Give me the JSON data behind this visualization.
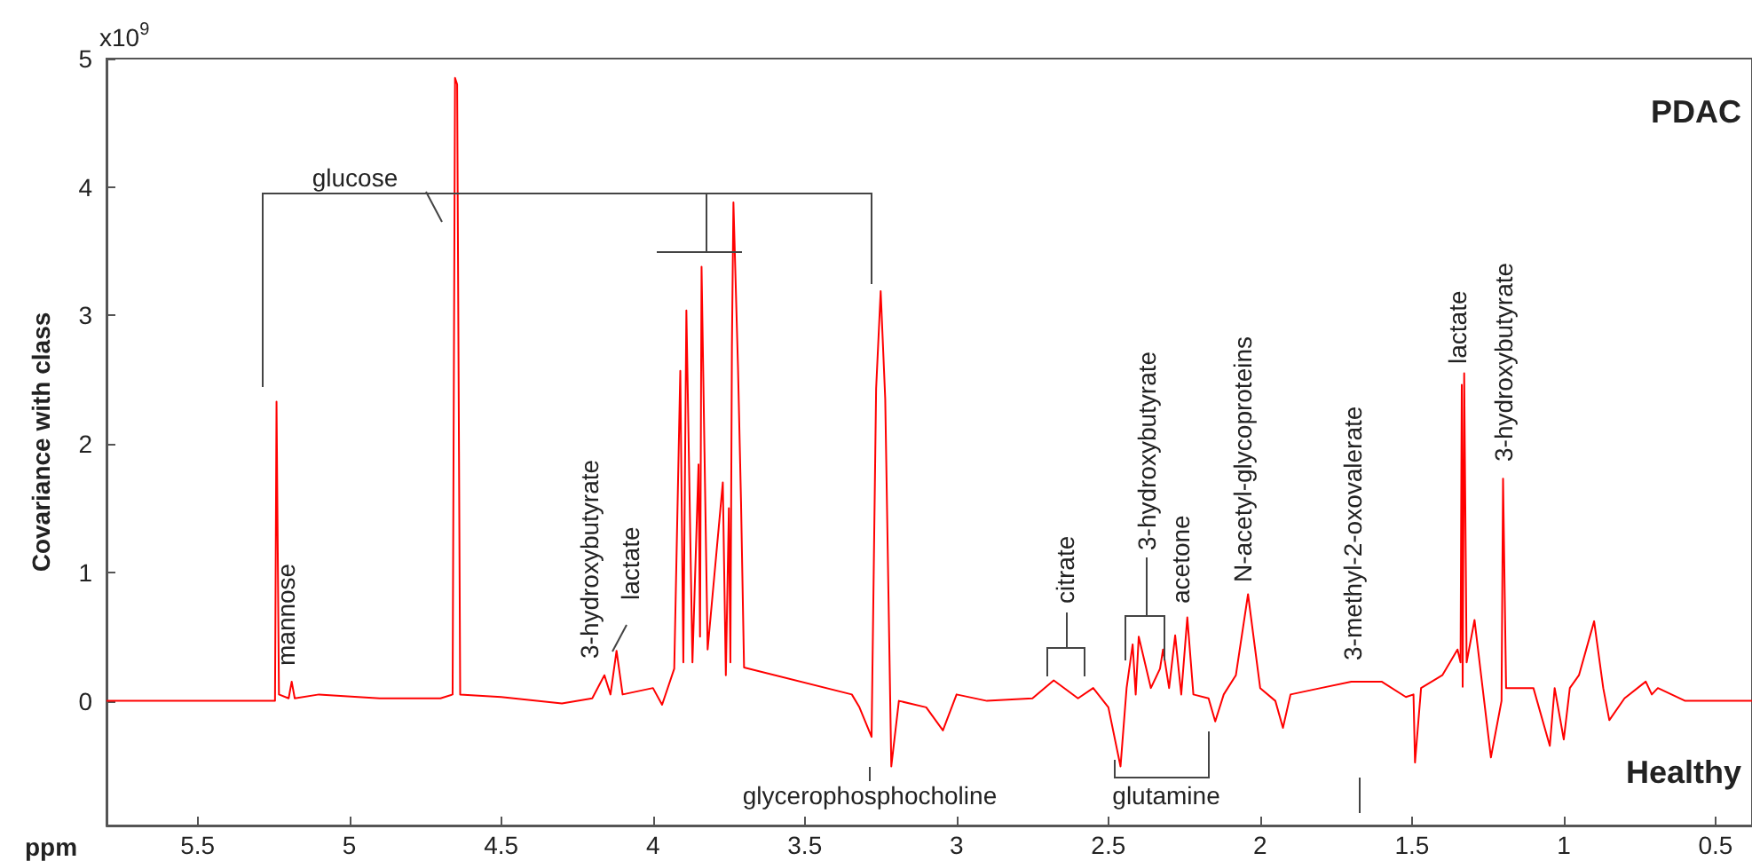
{
  "chart_data": {
    "type": "line",
    "xlabel": "ppm",
    "ylabel": "Covariance with class",
    "x": [
      5.8,
      5.5,
      5.3,
      5.245,
      5.24,
      5.232,
      5.2,
      5.19,
      5.18,
      5.1,
      4.9,
      4.7,
      4.66,
      4.652,
      4.645,
      4.635,
      4.5,
      4.3,
      4.2,
      4.16,
      4.14,
      4.12,
      4.1,
      4.0,
      3.97,
      3.93,
      3.91,
      3.9,
      3.89,
      3.87,
      3.85,
      3.845,
      3.84,
      3.82,
      3.77,
      3.76,
      3.75,
      3.745,
      3.74,
      3.735,
      3.72,
      3.71,
      3.7,
      3.345,
      3.32,
      3.28,
      3.265,
      3.25,
      3.235,
      3.215,
      3.19,
      3.1,
      3.045,
      3.0,
      2.9,
      2.75,
      2.68,
      2.6,
      2.55,
      2.5,
      2.46,
      2.44,
      2.42,
      2.41,
      2.4,
      2.36,
      2.33,
      2.32,
      2.3,
      2.28,
      2.26,
      2.24,
      2.22,
      2.17,
      2.148,
      2.12,
      2.08,
      2.04,
      2.0,
      1.95,
      1.925,
      1.9,
      1.8,
      1.7,
      1.6,
      1.52,
      1.495,
      1.49,
      1.47,
      1.4,
      1.35,
      1.34,
      1.336,
      1.333,
      1.328,
      1.32,
      1.294,
      1.24,
      1.205,
      1.2,
      1.19,
      1.1,
      1.046,
      1.03,
      1.0,
      0.98,
      0.95,
      0.9,
      0.87,
      0.85,
      0.8,
      0.73,
      0.71,
      0.69,
      0.6,
      0.38
    ],
    "series": [
      {
        "color": "#ff0000",
        "values": [
          0,
          0,
          0,
          0,
          2.33,
          0.05,
          0.02,
          0.15,
          0.02,
          0.05,
          0.02,
          0.02,
          0.05,
          4.85,
          4.8,
          0.05,
          0.03,
          -0.02,
          0.02,
          0.2,
          0.05,
          0.39,
          0.05,
          0.1,
          -0.03,
          0.25,
          2.57,
          0.3,
          3.04,
          0.3,
          1.84,
          0.5,
          3.38,
          0.4,
          1.7,
          0.2,
          1.5,
          0.3,
          2.76,
          3.88,
          2.6,
          1.55,
          0.26,
          0.05,
          -0.05,
          -0.28,
          2.43,
          3.19,
          2.35,
          -0.51,
          0,
          -0.05,
          -0.23,
          0.05,
          0,
          0.02,
          0.16,
          0.02,
          0.1,
          -0.05,
          -0.51,
          0.1,
          0.44,
          0.05,
          0.5,
          0.1,
          0.25,
          0.4,
          0.1,
          0.51,
          0.05,
          0.65,
          0.05,
          0.02,
          -0.16,
          0.05,
          0.2,
          0.83,
          0.1,
          0,
          -0.21,
          0.05,
          0.1,
          0.15,
          0.15,
          0.03,
          0.05,
          -0.48,
          0.1,
          0.2,
          0.4,
          0.3,
          2.46,
          0.11,
          2.55,
          0.3,
          0.63,
          -0.44,
          0,
          1.73,
          0.1,
          0.1,
          -0.35,
          0.1,
          -0.3,
          0.1,
          0.2,
          0.62,
          0.1,
          -0.15,
          0.02,
          0.15,
          0.05,
          0.1,
          0,
          0
        ]
      }
    ],
    "xlim": [
      5.8,
      0.38
    ],
    "ylim": [
      -0.97,
      5
    ],
    "xticks": [
      5.5,
      5,
      4.5,
      4,
      3.5,
      3,
      2.5,
      2,
      1.5,
      1,
      0.5
    ],
    "yticks": [
      0,
      1,
      2,
      3,
      4,
      5
    ],
    "grid": false,
    "annotations": [
      "x10$^{9}$",
      "PDAC",
      "Healthy",
      "glucose",
      "mannose",
      "3-hydroxybutyrate",
      "lactate",
      "glycerophosphocholine",
      "citrate",
      "3-hydroxybutyrate",
      "acetone",
      "glutamine",
      "N-acetyl-glycoproteins",
      "3-methyl-2-oxovalerate",
      "lactate",
      "3-hydroxybutyrate"
    ]
  }
}
